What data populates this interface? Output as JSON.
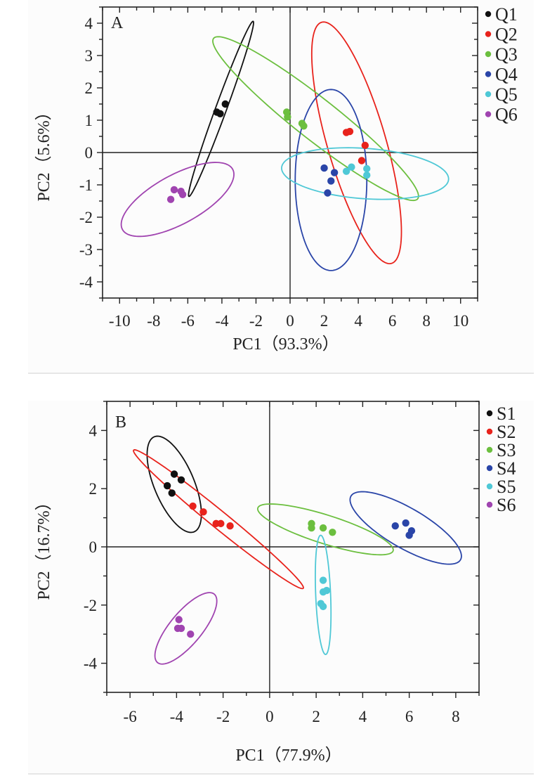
{
  "chart_data": [
    {
      "type": "scatter",
      "panel": "A",
      "title": "",
      "panel_label": "A",
      "xlabel": "PC1（93.3%）",
      "ylabel": "PC2（5.6%）",
      "xlim": [
        -11,
        11
      ],
      "ylim": [
        -4.5,
        4.5
      ],
      "xticks": [
        -10,
        -8,
        -6,
        -4,
        -2,
        0,
        2,
        4,
        6,
        8,
        10
      ],
      "yticks": [
        4,
        3,
        2,
        1,
        0,
        -1,
        -2,
        -3,
        -4
      ],
      "grid": false,
      "zero_lines": true,
      "legend_position": "outside-right",
      "series": [
        {
          "name": "Q1",
          "color": "#111111",
          "points": [
            [
              -4.3,
              1.25
            ],
            [
              -4.1,
              1.2
            ],
            [
              -3.8,
              1.5
            ]
          ],
          "ellipse": {
            "cx": -4.05,
            "cy": 1.35,
            "rx": 3.3,
            "ry": 0.28,
            "angle_deg": 55
          }
        },
        {
          "name": "Q2",
          "color": "#e8231c",
          "points": [
            [
              3.3,
              0.62
            ],
            [
              3.5,
              0.65
            ],
            [
              4.4,
              0.22
            ],
            [
              4.2,
              -0.25
            ]
          ],
          "ellipse": {
            "cx": 3.9,
            "cy": 0.3,
            "rx": 4.3,
            "ry": 1.55,
            "angle_deg": -58
          }
        },
        {
          "name": "Q3",
          "color": "#6cbf3f",
          "points": [
            [
              -0.2,
              1.25
            ],
            [
              -0.15,
              1.1
            ],
            [
              0.7,
              0.9
            ],
            [
              0.8,
              0.82
            ]
          ],
          "ellipse": {
            "cx": 1.5,
            "cy": 1.05,
            "rx": 6.5,
            "ry": 0.75,
            "angle_deg": -22
          }
        },
        {
          "name": "Q4",
          "color": "#2a45a8",
          "points": [
            [
              2.0,
              -0.48
            ],
            [
              2.6,
              -0.62
            ],
            [
              2.4,
              -0.88
            ],
            [
              2.2,
              -1.25
            ]
          ],
          "ellipse": {
            "cx": 2.4,
            "cy": -0.85,
            "rx": 2.1,
            "ry": 2.8,
            "angle_deg": 0
          }
        },
        {
          "name": "Q5",
          "color": "#4fc8d6",
          "points": [
            [
              3.6,
              -0.45
            ],
            [
              3.3,
              -0.58
            ],
            [
              4.5,
              -0.5
            ],
            [
              4.5,
              -0.7
            ]
          ],
          "ellipse": {
            "cx": 4.4,
            "cy": -0.65,
            "rx": 4.9,
            "ry": 0.78,
            "angle_deg": -2
          }
        },
        {
          "name": "Q6",
          "color": "#a044b0",
          "points": [
            [
              -6.8,
              -1.15
            ],
            [
              -6.4,
              -1.2
            ],
            [
              -6.3,
              -1.3
            ],
            [
              -7.0,
              -1.45
            ]
          ],
          "ellipse": {
            "cx": -6.6,
            "cy": -1.45,
            "rx": 3.4,
            "ry": 0.82,
            "angle_deg": 14
          }
        }
      ]
    },
    {
      "type": "scatter",
      "panel": "B",
      "title": "",
      "panel_label": "B",
      "xlabel": "PC1（77.9%）",
      "ylabel": "PC2（16.7%）",
      "xlim": [
        -7,
        9
      ],
      "ylim": [
        -5,
        5
      ],
      "xticks": [
        -6,
        -4,
        -2,
        0,
        2,
        4,
        6,
        8
      ],
      "yticks": [
        4,
        2,
        0,
        -2,
        -4
      ],
      "grid": false,
      "zero_lines": true,
      "legend_position": "outside-right",
      "series": [
        {
          "name": "S1",
          "color": "#111111",
          "points": [
            [
              -4.1,
              2.5
            ],
            [
              -3.8,
              2.3
            ],
            [
              -4.4,
              2.1
            ],
            [
              -4.2,
              1.85
            ]
          ],
          "ellipse": {
            "cx": -4.1,
            "cy": 2.15,
            "rx": 1.85,
            "ry": 0.82,
            "angle_deg": -60
          }
        },
        {
          "name": "S2",
          "color": "#e8231c",
          "points": [
            [
              -3.3,
              1.4
            ],
            [
              -2.85,
              1.2
            ],
            [
              -2.3,
              0.8
            ],
            [
              -2.1,
              0.8
            ],
            [
              -1.7,
              0.72
            ]
          ],
          "ellipse": {
            "cx": -2.2,
            "cy": 0.95,
            "rx": 4.35,
            "ry": 0.32,
            "angle_deg": -33
          }
        },
        {
          "name": "S3",
          "color": "#6cbf3f",
          "points": [
            [
              1.8,
              0.8
            ],
            [
              1.8,
              0.65
            ],
            [
              2.3,
              0.65
            ],
            [
              2.7,
              0.5
            ]
          ],
          "ellipse": {
            "cx": 2.4,
            "cy": 0.6,
            "rx": 3.0,
            "ry": 0.5,
            "angle_deg": -14
          }
        },
        {
          "name": "S4",
          "color": "#2a45a8",
          "points": [
            [
              5.4,
              0.72
            ],
            [
              5.85,
              0.82
            ],
            [
              6.1,
              0.55
            ],
            [
              6.0,
              0.4
            ]
          ],
          "ellipse": {
            "cx": 5.85,
            "cy": 0.65,
            "rx": 2.6,
            "ry": 0.72,
            "angle_deg": -24
          }
        },
        {
          "name": "S5",
          "color": "#4fc8d6",
          "points": [
            [
              2.3,
              -1.15
            ],
            [
              2.3,
              -1.55
            ],
            [
              2.45,
              -1.5
            ],
            [
              2.2,
              -1.95
            ],
            [
              2.3,
              -2.05
            ]
          ],
          "ellipse": {
            "cx": 2.3,
            "cy": -1.65,
            "rx": 0.32,
            "ry": 2.05,
            "angle_deg": 3
          }
        },
        {
          "name": "S6",
          "color": "#a044b0",
          "points": [
            [
              -3.9,
              -2.5
            ],
            [
              -3.95,
              -2.8
            ],
            [
              -3.8,
              -2.8
            ],
            [
              -3.4,
              -3.0
            ]
          ],
          "ellipse": {
            "cx": -3.6,
            "cy": -2.8,
            "rx": 1.7,
            "ry": 0.62,
            "angle_deg": 42
          }
        }
      ]
    }
  ]
}
